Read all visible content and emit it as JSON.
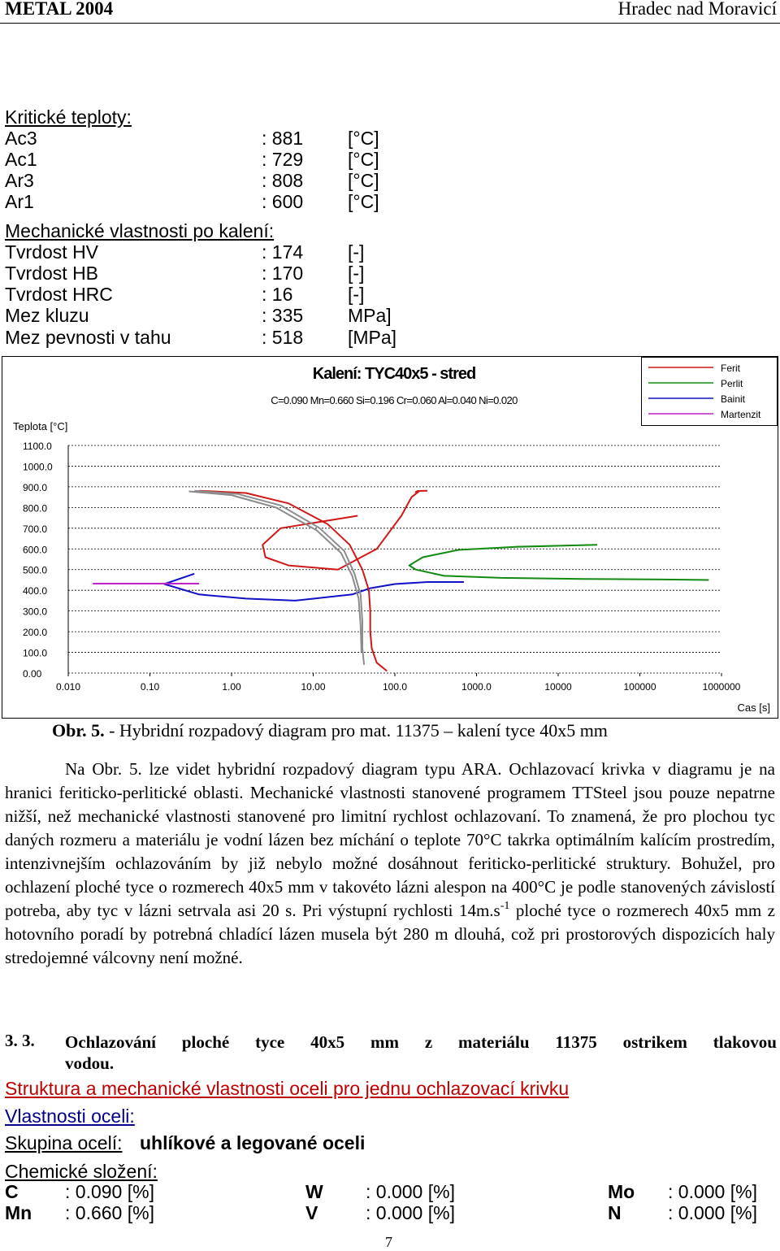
{
  "header": {
    "left": "METAL 2004",
    "right": "Hradec nad Moravicí"
  },
  "critical": {
    "title": "Kritické teploty:",
    "rows": [
      {
        "label": "Ac3",
        "value": ": 881",
        "unit": "[°C]"
      },
      {
        "label": "Ac1",
        "value": ": 729",
        "unit": "[°C]"
      },
      {
        "label": "Ar3",
        "value": ": 808",
        "unit": "[°C]"
      },
      {
        "label": "Ar1",
        "value": ": 600",
        "unit": "[°C]"
      }
    ]
  },
  "mech": {
    "title": "Mechanické vlastnosti po kalení:",
    "rows": [
      {
        "label": "Tvrdost HV",
        "value": ": 174",
        "unit": "[-]"
      },
      {
        "label": "Tvrdost HB",
        "value": ": 170",
        "unit": "[-]"
      },
      {
        "label": "Tvrdost HRC",
        "value": ": 16",
        "unit": "[-]"
      },
      {
        "label": "Mez kluzu",
        "value": ": 335",
        "unit": "MPa]"
      },
      {
        "label": "Mez pevnosti v tahu",
        "value": ": 518",
        "unit": "[MPa]"
      }
    ]
  },
  "chart_data": {
    "type": "line",
    "title": "Kalení: TYC40x5 - stred",
    "subtitle": "C=0.090  Mn=0.660  Si=0.196  Cr=0.060  Al=0.040  Ni=0.020",
    "ylabel": "Teplota  [°C]",
    "xlabel": "Cas  [s]",
    "x_scale": "log",
    "xlim": [
      0.01,
      1000000
    ],
    "ylim": [
      0,
      1100
    ],
    "x_ticks": [
      "0.010",
      "0.10",
      "1.00",
      "10.00",
      "100.0",
      "1000.0",
      "10000",
      "100000",
      "1000000"
    ],
    "y_ticks": [
      "0.00",
      "100.0",
      "200.0",
      "300.0",
      "400.0",
      "500.0",
      "600.0",
      "700.0",
      "800.0",
      "900.0",
      "1000.0",
      "1100.0"
    ],
    "grid": true,
    "legend_position": "top-right",
    "series": [
      {
        "name": "Ferit",
        "color": "#d01818",
        "x": [
          35,
          4,
          2.4,
          2.6,
          5,
          20,
          60,
          120,
          160,
          200,
          180,
          190,
          250
        ],
        "y": [
          760,
          700,
          620,
          560,
          520,
          500,
          600,
          760,
          850,
          880,
          875,
          880,
          881
        ]
      },
      {
        "name": "Perlit",
        "color": "#128a12",
        "x": [
          30000,
          3000,
          600,
          220,
          150,
          180,
          400,
          2000,
          20000,
          200000,
          700000
        ],
        "y": [
          620,
          610,
          595,
          560,
          520,
          500,
          470,
          460,
          455,
          452,
          450
        ]
      },
      {
        "name": "Bainit",
        "color": "#1010c8",
        "x": [
          0.35,
          0.15,
          0.4,
          1.5,
          6,
          30,
          50,
          100,
          250,
          700
        ],
        "y": [
          480,
          430,
          380,
          360,
          350,
          380,
          410,
          430,
          440,
          440
        ]
      },
      {
        "name": "Martenzit",
        "color": "#c020c8",
        "x": [
          0.02,
          0.4
        ],
        "y": [
          432,
          432
        ]
      },
      {
        "name": "",
        "color": "#d01818",
        "x": [
          0.4,
          1.5,
          5,
          15,
          28,
          40,
          48,
          50,
          50,
          52,
          60,
          80
        ],
        "y": [
          881,
          870,
          820,
          720,
          620,
          500,
          400,
          300,
          200,
          120,
          50,
          10
        ]
      },
      {
        "name": "",
        "color": "#8c8c8c",
        "x": [
          0.35,
          1.2,
          4,
          12,
          24,
          32,
          38,
          40,
          40,
          42
        ],
        "y": [
          881,
          865,
          810,
          700,
          590,
          480,
          380,
          250,
          120,
          40
        ]
      },
      {
        "name": "",
        "color": "#8c8c8c",
        "x": [
          0.3,
          1.0,
          3.5,
          11,
          22,
          30,
          36,
          38,
          39
        ],
        "y": [
          878,
          860,
          800,
          690,
          580,
          470,
          360,
          230,
          100
        ]
      }
    ]
  },
  "caption": {
    "label": "Obr. 5.",
    "text": " - Hybridní rozpadový diagram pro mat. 11375 – kalení tyce 40x5 mm"
  },
  "paragraph": {
    "part1": "Na Obr. 5. lze videt hybridní rozpadový diagram typu ARA. Ochlazovací krivka v diagramu je na hranici feriticko-perlitické oblasti. Mechanické vlastnosti stanovené programem TTSteel jsou pouze nepatrne nižší, než mechanické vlastnosti stanovené pro limitní rychlost ochlazovaní. To znamená, že pro plochou tyc daných rozmeru a materiálu je vodní lázen bez míchání o teplote 70°C takrka optimálním kalícím prostredím, intenzivnejším ochlazováním by již nebylo možné dosáhnout feriticko-perlitické struktury. Bohužel, pro ochlazení ploché tyce o rozmerech 40x5 mm v takovéto lázni alespon na 400°C je podle stanovených závislostí potreba, aby tyc v lázni setrvala asi 20 s. Pri výstupní rychlosti 14m.s",
    "sup": "-1",
    "part2": " ploché tyce o rozmerech 40x5 mm z hotovního poradí by potrebná chladící lázen musela být 280 m dlouhá, což pri prostorových dispozicích haly stredojemné válcovny není možné."
  },
  "section": {
    "number": "3. 3.",
    "title_line1": "Ochlazování ploché tyce 40x5 mm z materiálu 11375 ostrikem tlakovou",
    "title_line2": "vodou."
  },
  "links": {
    "structure": "Struktura a mechanické vlastnosti oceli pro jednu ochlazovací krivku",
    "properties": "Vlastnosti oceli:"
  },
  "group": {
    "label": "Skupina ocelí:",
    "value": "uhlíkové a legované oceli"
  },
  "chem": {
    "title": "Chemické složení:",
    "items": [
      {
        "el": "C",
        "val": ": 0.090 [%]"
      },
      {
        "el": "W",
        "val": ": 0.000 [%]"
      },
      {
        "el": "Mo",
        "val": ": 0.000 [%]"
      },
      {
        "el": "Mn",
        "val": ": 0.660 [%]"
      },
      {
        "el": "V",
        "val": ": 0.000 [%]"
      },
      {
        "el": "N",
        "val": ": 0.000 [%]"
      }
    ]
  },
  "page_number": "7"
}
